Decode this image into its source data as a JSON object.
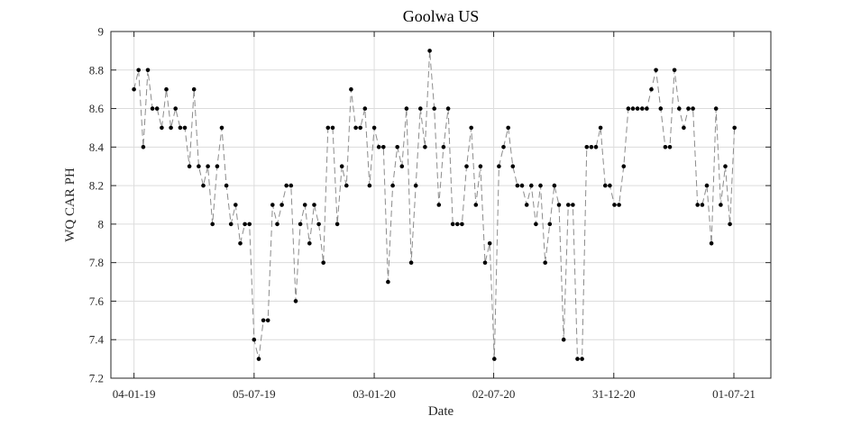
{
  "chart_data": {
    "type": "line",
    "title": "Goolwa US",
    "xlabel": "Date",
    "ylabel": "WQ CAR PH",
    "ylim": [
      7.2,
      9
    ],
    "yticks": [
      "7.2",
      "7.4",
      "7.6",
      "7.8",
      "8",
      "8.2",
      "8.4",
      "8.6",
      "8.8",
      "9"
    ],
    "xticks": [
      "04-01-19",
      "05-07-19",
      "03-01-20",
      "02-07-20",
      "31-12-20",
      "01-07-21"
    ],
    "xlim": [
      "2018-11-30",
      "2021-08-26"
    ],
    "grid": true,
    "series": [
      {
        "x": [
          "2019-01-04",
          "2019-01-11",
          "2019-01-18",
          "2019-01-25",
          "2019-02-01",
          "2019-02-08",
          "2019-02-15",
          "2019-02-22",
          "2019-03-01",
          "2019-03-08",
          "2019-03-15",
          "2019-03-22",
          "2019-03-29",
          "2019-04-05",
          "2019-04-12",
          "2019-04-19",
          "2019-04-26",
          "2019-05-03",
          "2019-05-10",
          "2019-05-17",
          "2019-05-24",
          "2019-05-31",
          "2019-06-07",
          "2019-06-14",
          "2019-06-21",
          "2019-06-28",
          "2019-07-05",
          "2019-07-12",
          "2019-07-19",
          "2019-07-26",
          "2019-08-02",
          "2019-08-09",
          "2019-08-16",
          "2019-08-23",
          "2019-08-30",
          "2019-09-06",
          "2019-09-13",
          "2019-09-20",
          "2019-09-27",
          "2019-10-04",
          "2019-10-11",
          "2019-10-18",
          "2019-10-25",
          "2019-11-01",
          "2019-11-08",
          "2019-11-15",
          "2019-11-22",
          "2019-11-29",
          "2019-12-06",
          "2019-12-13",
          "2019-12-20",
          "2019-12-27",
          "2020-01-03",
          "2020-01-10",
          "2020-01-17",
          "2020-01-24",
          "2020-01-31",
          "2020-02-07",
          "2020-02-14",
          "2020-02-21",
          "2020-02-28",
          "2020-03-06",
          "2020-03-13",
          "2020-03-20",
          "2020-03-27",
          "2020-04-03",
          "2020-04-10",
          "2020-04-17",
          "2020-04-24",
          "2020-05-01",
          "2020-05-08",
          "2020-05-15",
          "2020-05-22",
          "2020-05-29",
          "2020-06-05",
          "2020-06-12",
          "2020-06-19",
          "2020-06-26",
          "2020-07-03",
          "2020-07-10",
          "2020-07-17",
          "2020-07-24",
          "2020-07-31",
          "2020-08-07",
          "2020-08-14",
          "2020-08-21",
          "2020-08-28",
          "2020-09-04",
          "2020-09-11",
          "2020-09-18",
          "2020-09-25",
          "2020-10-02",
          "2020-10-09",
          "2020-10-16",
          "2020-10-23",
          "2020-10-30",
          "2020-11-06",
          "2020-11-13",
          "2020-11-20",
          "2020-11-27",
          "2020-12-04",
          "2020-12-11",
          "2020-12-18",
          "2020-12-25",
          "2021-01-01",
          "2021-01-08",
          "2021-01-15",
          "2021-01-22",
          "2021-01-29",
          "2021-02-05",
          "2021-02-12",
          "2021-02-19",
          "2021-02-26",
          "2021-03-05",
          "2021-03-12",
          "2021-03-19",
          "2021-03-26",
          "2021-04-02",
          "2021-04-09",
          "2021-04-16",
          "2021-04-23",
          "2021-04-30",
          "2021-05-07",
          "2021-05-14",
          "2021-05-21",
          "2021-05-28",
          "2021-06-04",
          "2021-06-11",
          "2021-06-18",
          "2021-06-25",
          "2021-07-02"
        ],
        "y": [
          8.7,
          8.8,
          8.4,
          8.8,
          8.6,
          8.6,
          8.5,
          8.7,
          8.5,
          8.6,
          8.5,
          8.5,
          8.3,
          8.7,
          8.3,
          8.2,
          8.3,
          8.0,
          8.3,
          8.5,
          8.2,
          8.0,
          8.1,
          7.9,
          8.0,
          8.0,
          7.4,
          7.3,
          7.5,
          7.5,
          8.1,
          8.0,
          8.1,
          8.2,
          8.2,
          7.6,
          8.0,
          8.1,
          7.9,
          8.1,
          8.0,
          7.8,
          8.5,
          8.5,
          8.0,
          8.3,
          8.2,
          8.7,
          8.5,
          8.5,
          8.6,
          8.2,
          8.5,
          8.4,
          8.4,
          7.7,
          8.2,
          8.4,
          8.3,
          8.6,
          7.8,
          8.2,
          8.6,
          8.4,
          8.9,
          8.6,
          8.1,
          8.4,
          8.6,
          8.0,
          8.0,
          8.0,
          8.3,
          8.5,
          8.1,
          8.3,
          7.8,
          7.9,
          7.3,
          8.3,
          8.4,
          8.5,
          8.3,
          8.2,
          8.2,
          8.1,
          8.2,
          8.0,
          8.2,
          7.8,
          8.0,
          8.2,
          8.1,
          7.4,
          8.1,
          8.1,
          7.3,
          7.3,
          8.4,
          8.4,
          8.4,
          8.5,
          8.2,
          8.2,
          8.1,
          8.1,
          8.3,
          8.6,
          8.6,
          8.6,
          8.6,
          8.6,
          8.7,
          8.8,
          8.6,
          8.4,
          8.4,
          8.8,
          8.6,
          8.5,
          8.6,
          8.6,
          8.1,
          8.1,
          8.2,
          7.9,
          8.6,
          8.1,
          8.3,
          8.0,
          8.5
        ]
      }
    ]
  }
}
